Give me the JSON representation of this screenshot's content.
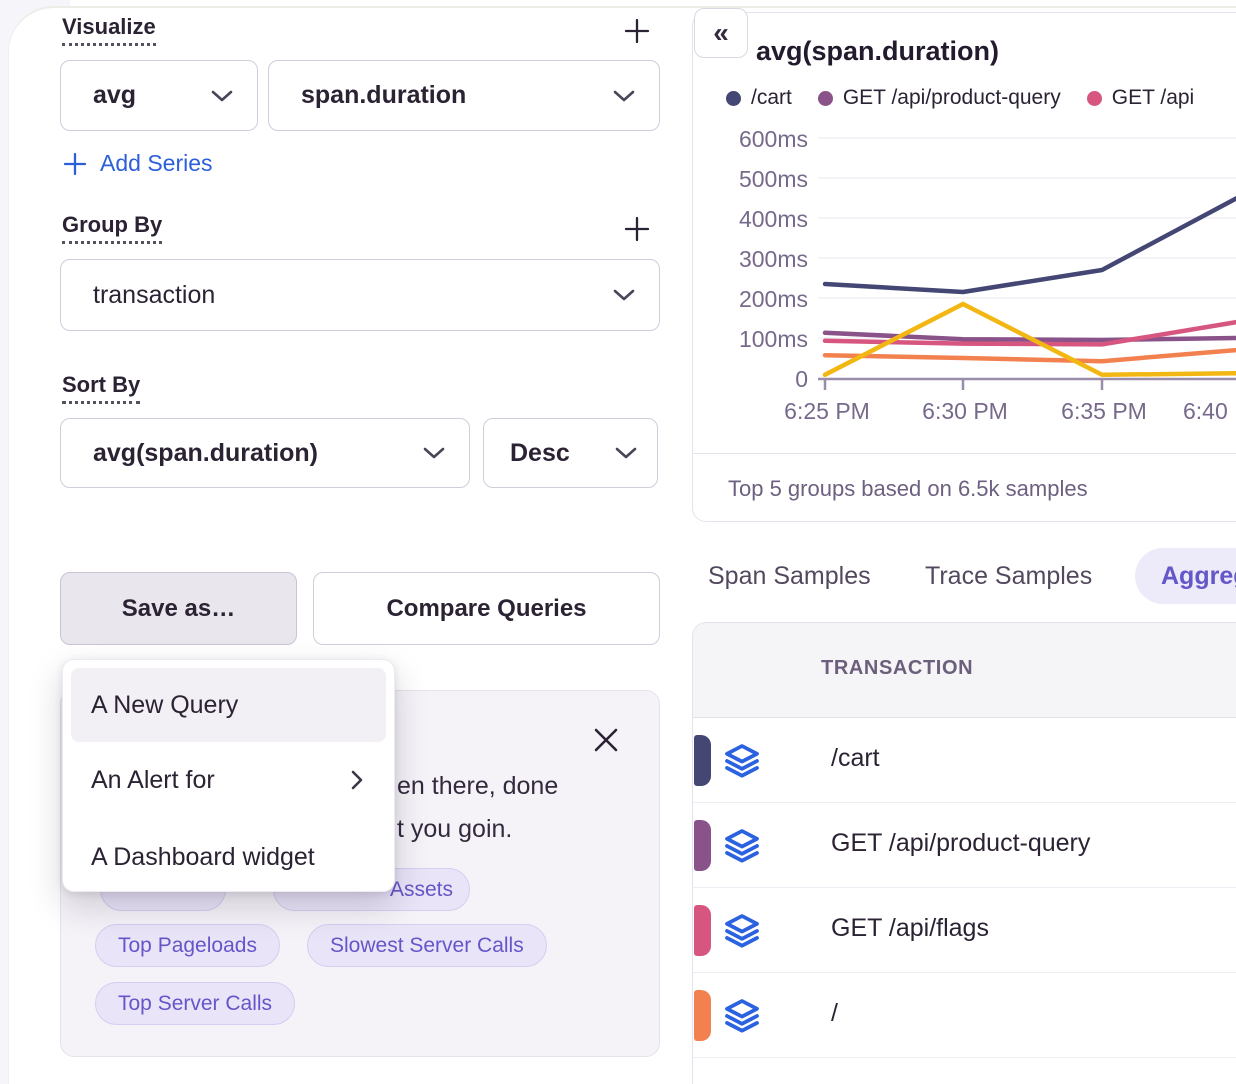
{
  "left_panel": {
    "visualize_label": "Visualize",
    "aggregate_value": "avg",
    "field_value": "span.duration",
    "add_series_label": "Add Series",
    "group_by_label": "Group By",
    "group_by_value": "transaction",
    "sort_by_label": "Sort By",
    "sort_value": "avg(span.duration)",
    "sort_direction": "Desc",
    "save_as_label": "Save as…",
    "compare_label": "Compare Queries",
    "save_menu_items": [
      {
        "label": "A New Query",
        "highlighted": true,
        "submenu": false
      },
      {
        "label": "An Alert for",
        "highlighted": false,
        "submenu": true
      },
      {
        "label": "A Dashboard widget",
        "highlighted": false,
        "submenu": false
      }
    ],
    "banner": {
      "visible_text_lines": [
        "en there, done",
        "t you goin."
      ],
      "pills": [
        "",
        "Assets",
        "Top Pageloads",
        "Slowest Server Calls",
        "Top Server Calls"
      ]
    }
  },
  "chart_panel": {
    "collapse_icon": "«",
    "title": "avg(span.duration)",
    "legend": [
      {
        "label": "/cart",
        "color": "#444674"
      },
      {
        "label": "GET /api/product-query",
        "color": "#895289"
      },
      {
        "label": "GET /api",
        "color": "#d6567f"
      }
    ],
    "footer": "Top 5 groups based on 6.5k samples"
  },
  "chart_data": {
    "type": "line",
    "title": "avg(span.duration)",
    "x_labels": [
      "6:25 PM",
      "6:30 PM",
      "6:35 PM",
      "6:40"
    ],
    "y_ticks": [
      "0",
      "100ms",
      "200ms",
      "300ms",
      "400ms",
      "500ms",
      "600ms"
    ],
    "ylim": [
      0,
      600
    ],
    "y_unit": "ms",
    "grid": "horizontal-faint",
    "legend_position": "top",
    "note": "Top 5 groups based on 6.5k samples",
    "series": [
      {
        "name": "/cart",
        "color": "#444674",
        "values": [
          235,
          215,
          270,
          450
        ]
      },
      {
        "name": "GET /api/product-query",
        "color": "#895289",
        "values": [
          113,
          97,
          95,
          100
        ]
      },
      {
        "name": "GET /api/flags",
        "color": "#d6567f",
        "values": [
          93,
          86,
          84,
          140
        ]
      },
      {
        "name": "/",
        "color": "#f38150",
        "values": [
          57,
          50,
          42,
          70
        ]
      },
      {
        "name": "",
        "color": "#f2b712",
        "values": [
          8,
          185,
          8,
          12
        ]
      }
    ]
  },
  "tabs": {
    "items": [
      {
        "label": "Span Samples",
        "active": false
      },
      {
        "label": "Trace Samples",
        "active": false
      },
      {
        "label": "Aggreg",
        "active": true
      }
    ]
  },
  "table": {
    "header": "TRANSACTION",
    "rows": [
      {
        "label": "/cart",
        "color": "#444674"
      },
      {
        "label": "GET /api/product-query",
        "color": "#895289"
      },
      {
        "label": "GET /api/flags",
        "color": "#d6567f"
      },
      {
        "label": "/",
        "color": "#f38150"
      }
    ]
  },
  "colors": {
    "accent_blue": "#2c5fd9",
    "accent_indigo": "#6357c9",
    "icon_blue": "#2b62e0",
    "axis_gray": "#77698a",
    "palette": [
      "#444674",
      "#895289",
      "#d6567f",
      "#f38150",
      "#f2b712"
    ]
  }
}
